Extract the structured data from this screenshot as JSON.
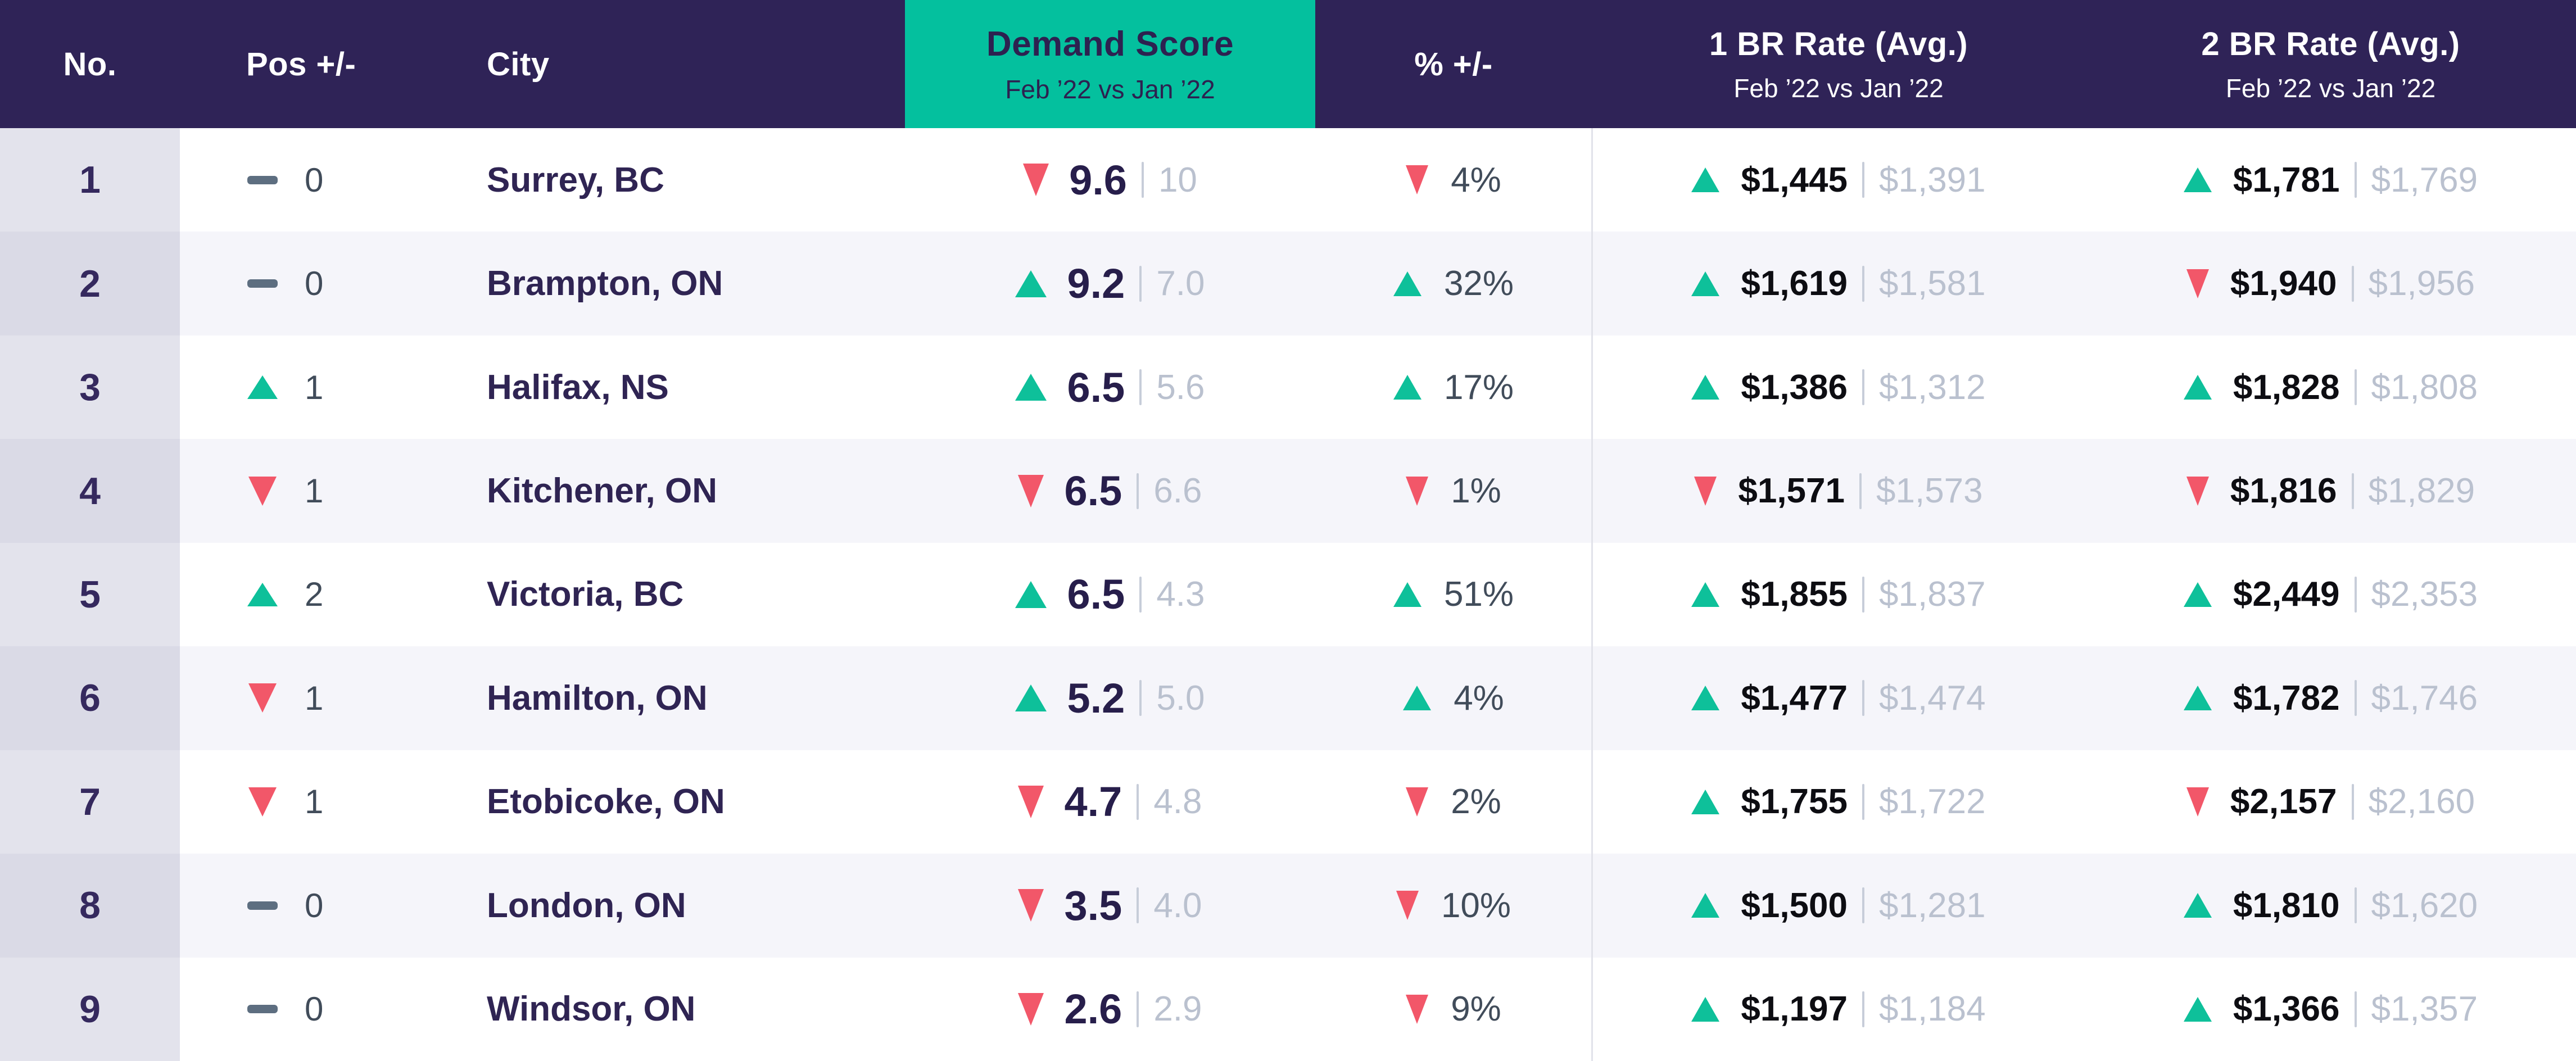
{
  "palette": {
    "header_bg": "#2f2357",
    "accent_teal": "#04c09e",
    "up_arrow": "#0ec09a",
    "down_arrow": "#f25769",
    "primary_text": "#2f2453",
    "rate_text": "#0d0d12",
    "muted_text": "#bac1cf",
    "slate_text": "#414c5a"
  },
  "chart_data": {
    "type": "table",
    "columns": [
      {
        "id": "no",
        "label": "No."
      },
      {
        "id": "pos",
        "label": "Pos +/-"
      },
      {
        "id": "city",
        "label": "City"
      },
      {
        "id": "score",
        "label": "Demand Score",
        "sublabel": "Feb ’22 vs Jan ’22",
        "highlighted": true
      },
      {
        "id": "pct",
        "label": "% +/-"
      },
      {
        "id": "br1",
        "label": "1 BR Rate (Avg.)",
        "sublabel": "Feb ’22 vs Jan ’22"
      },
      {
        "id": "br2",
        "label": "2 BR Rate (Avg.)",
        "sublabel": "Feb ’22 vs Jan ’22"
      }
    ],
    "rows": [
      {
        "no": "1",
        "pos_dir": "flat",
        "pos": "0",
        "city": "Surrey, BC",
        "score_dir": "down",
        "score": "9.6",
        "score_prev": "10",
        "pct_dir": "down",
        "pct": "4%",
        "br1_dir": "up",
        "br1": "$1,445",
        "br1_prev": "$1,391",
        "br2_dir": "up",
        "br2": "$1,781",
        "br2_prev": "$1,769"
      },
      {
        "no": "2",
        "pos_dir": "flat",
        "pos": "0",
        "city": "Brampton, ON",
        "score_dir": "up",
        "score": "9.2",
        "score_prev": "7.0",
        "pct_dir": "up",
        "pct": "32%",
        "br1_dir": "up",
        "br1": "$1,619",
        "br1_prev": "$1,581",
        "br2_dir": "down",
        "br2": "$1,940",
        "br2_prev": "$1,956"
      },
      {
        "no": "3",
        "pos_dir": "up",
        "pos": "1",
        "city": "Halifax, NS",
        "score_dir": "up",
        "score": "6.5",
        "score_prev": "5.6",
        "pct_dir": "up",
        "pct": "17%",
        "br1_dir": "up",
        "br1": "$1,386",
        "br1_prev": "$1,312",
        "br2_dir": "up",
        "br2": "$1,828",
        "br2_prev": "$1,808"
      },
      {
        "no": "4",
        "pos_dir": "down",
        "pos": "1",
        "city": "Kitchener, ON",
        "score_dir": "down",
        "score": "6.5",
        "score_prev": "6.6",
        "pct_dir": "down",
        "pct": "1%",
        "br1_dir": "down",
        "br1": "$1,571",
        "br1_prev": "$1,573",
        "br2_dir": "down",
        "br2": "$1,816",
        "br2_prev": "$1,829"
      },
      {
        "no": "5",
        "pos_dir": "up",
        "pos": "2",
        "city": "Victoria, BC",
        "score_dir": "up",
        "score": "6.5",
        "score_prev": "4.3",
        "pct_dir": "up",
        "pct": "51%",
        "br1_dir": "up",
        "br1": "$1,855",
        "br1_prev": "$1,837",
        "br2_dir": "up",
        "br2": "$2,449",
        "br2_prev": "$2,353"
      },
      {
        "no": "6",
        "pos_dir": "down",
        "pos": "1",
        "city": "Hamilton, ON",
        "score_dir": "up",
        "score": "5.2",
        "score_prev": "5.0",
        "pct_dir": "up",
        "pct": "4%",
        "br1_dir": "up",
        "br1": "$1,477",
        "br1_prev": "$1,474",
        "br2_dir": "up",
        "br2": "$1,782",
        "br2_prev": "$1,746"
      },
      {
        "no": "7",
        "pos_dir": "down",
        "pos": "1",
        "city": "Etobicoke, ON",
        "score_dir": "down",
        "score": "4.7",
        "score_prev": "4.8",
        "pct_dir": "down",
        "pct": "2%",
        "br1_dir": "up",
        "br1": "$1,755",
        "br1_prev": "$1,722",
        "br2_dir": "down",
        "br2": "$2,157",
        "br2_prev": "$2,160"
      },
      {
        "no": "8",
        "pos_dir": "flat",
        "pos": "0",
        "city": "London, ON",
        "score_dir": "down",
        "score": "3.5",
        "score_prev": "4.0",
        "pct_dir": "down",
        "pct": "10%",
        "br1_dir": "up",
        "br1": "$1,500",
        "br1_prev": "$1,281",
        "br2_dir": "up",
        "br2": "$1,810",
        "br2_prev": "$1,620"
      },
      {
        "no": "9",
        "pos_dir": "flat",
        "pos": "0",
        "city": "Windsor, ON",
        "score_dir": "down",
        "score": "2.6",
        "score_prev": "2.9",
        "pct_dir": "down",
        "pct": "9%",
        "br1_dir": "up",
        "br1": "$1,197",
        "br1_prev": "$1,184",
        "br2_dir": "up",
        "br2": "$1,366",
        "br2_prev": "$1,357"
      }
    ]
  }
}
